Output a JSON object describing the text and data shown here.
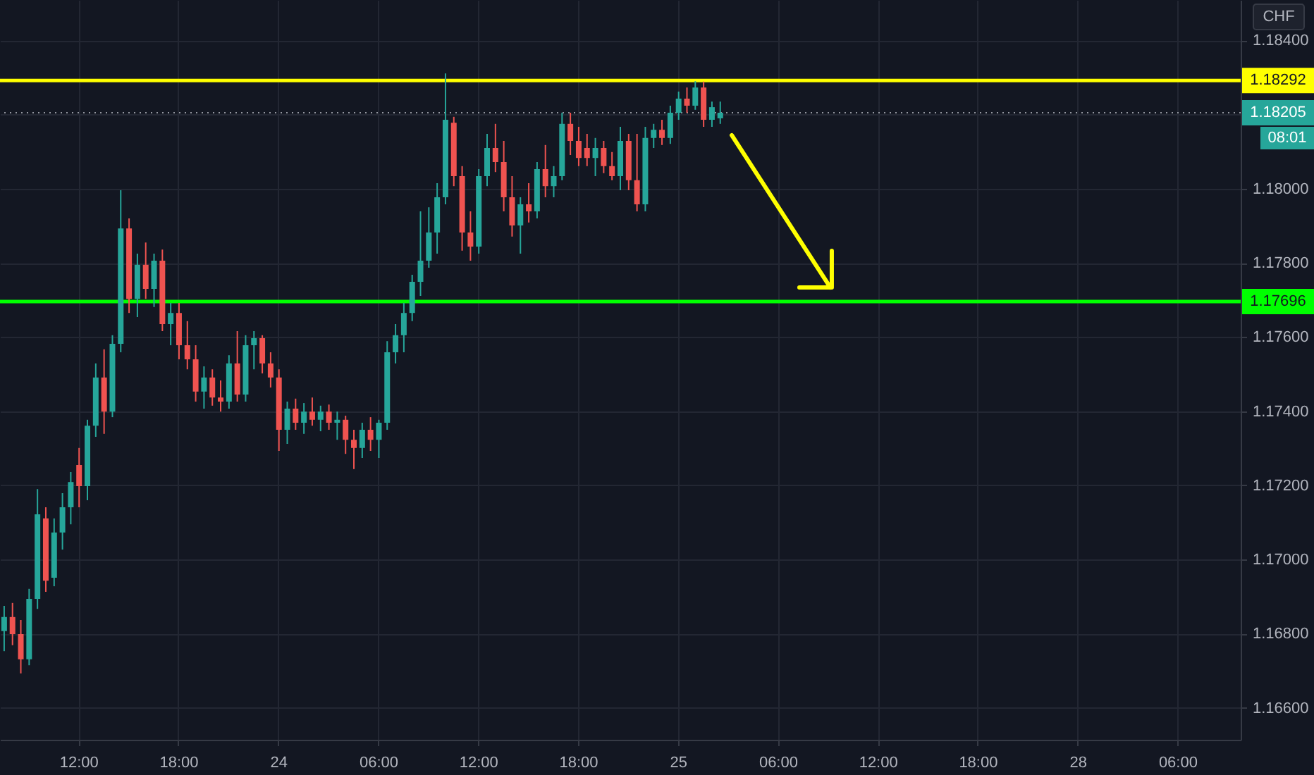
{
  "chart_data": {
    "type": "candlestick",
    "categories": [
      null,
      null,
      null,
      null,
      null,
      null,
      null,
      null,
      null,
      "12:00",
      null,
      null,
      null,
      null,
      null,
      null,
      null,
      null,
      null,
      null,
      null,
      "18:00",
      null,
      null,
      null,
      null,
      null,
      null,
      null,
      null,
      null,
      null,
      null,
      "24",
      null,
      null,
      null,
      null,
      null,
      null,
      null,
      null,
      null,
      null,
      null,
      "06:00",
      null,
      null,
      null,
      null,
      null,
      null,
      null,
      null,
      null,
      null,
      null,
      "12:00",
      null,
      null,
      null,
      null,
      null,
      null,
      null,
      null,
      null,
      null,
      null,
      "18:00",
      null,
      null,
      null,
      null,
      null,
      null,
      null,
      null,
      null,
      null,
      null,
      "25",
      null,
      null,
      null,
      null,
      null,
      null,
      null,
      null,
      null,
      null,
      null,
      "06:00",
      null,
      null,
      null,
      null,
      null,
      null,
      null,
      null,
      null,
      null,
      null,
      "12:00",
      null,
      null,
      null,
      null,
      null,
      null,
      null,
      null,
      null,
      null,
      null,
      "18:00",
      null,
      null,
      null,
      null,
      null,
      null,
      null,
      null,
      null,
      null,
      null,
      "28",
      null,
      null,
      null,
      null,
      null,
      null,
      null,
      null,
      null,
      null,
      null,
      "06:00",
      null,
      null,
      null,
      null,
      null,
      null,
      null
    ],
    "ohlc": [
      [
        1.16807,
        1.16875,
        1.16753,
        1.16845
      ],
      [
        1.16845,
        1.16883,
        1.16769,
        1.16799
      ],
      [
        1.16799,
        1.16837,
        1.16693,
        1.16731
      ],
      [
        1.16731,
        1.16921,
        1.16715,
        1.16894
      ],
      [
        1.16894,
        1.1719,
        1.16867,
        1.17122
      ],
      [
        1.17111,
        1.17141,
        1.16913,
        1.16943
      ],
      [
        1.16951,
        1.17111,
        1.16928,
        1.17073
      ],
      [
        1.17073,
        1.17179,
        1.17027,
        1.17141
      ],
      [
        1.17141,
        1.17236,
        1.17095,
        1.17209
      ],
      [
        1.17255,
        1.17301,
        1.17141,
        1.17198
      ],
      [
        1.17198,
        1.17377,
        1.1716,
        1.17361
      ],
      [
        1.17361,
        1.17529,
        1.17331,
        1.17491
      ],
      [
        1.17491,
        1.17567,
        1.17339,
        1.17399
      ],
      [
        1.17399,
        1.17605,
        1.17384,
        1.17582
      ],
      [
        1.17582,
        1.17996,
        1.17559,
        1.17893
      ],
      [
        1.17893,
        1.1792,
        1.17665,
        1.17703
      ],
      [
        1.17703,
        1.17825,
        1.17654,
        1.17795
      ],
      [
        1.17795,
        1.17855,
        1.17703,
        1.1773
      ],
      [
        1.1773,
        1.17825,
        1.17681,
        1.17806
      ],
      [
        1.17806,
        1.17836,
        1.17616,
        1.17635
      ],
      [
        1.17635,
        1.17692,
        1.17578,
        1.17665
      ],
      [
        1.17665,
        1.17692,
        1.1754,
        1.17578
      ],
      [
        1.17578,
        1.17643,
        1.17513,
        1.1754
      ],
      [
        1.1754,
        1.17578,
        1.17426,
        1.17453
      ],
      [
        1.17453,
        1.17521,
        1.17407,
        1.17491
      ],
      [
        1.17491,
        1.17513,
        1.17415,
        1.17437
      ],
      [
        1.17437,
        1.17483,
        1.17399,
        1.17426
      ],
      [
        1.17426,
        1.17551,
        1.17407,
        1.17529
      ],
      [
        1.17529,
        1.17616,
        1.17426,
        1.17445
      ],
      [
        1.17445,
        1.17605,
        1.17426,
        1.17578
      ],
      [
        1.17578,
        1.17616,
        1.17513,
        1.17597
      ],
      [
        1.17597,
        1.17605,
        1.17502,
        1.17529
      ],
      [
        1.17529,
        1.17559,
        1.17464,
        1.17491
      ],
      [
        1.17491,
        1.17513,
        1.17293,
        1.1735
      ],
      [
        1.1735,
        1.17426,
        1.17312,
        1.17407
      ],
      [
        1.17407,
        1.17434,
        1.1735,
        1.17369
      ],
      [
        1.17369,
        1.17422,
        1.17339,
        1.17399
      ],
      [
        1.17399,
        1.17437,
        1.17361,
        1.17377
      ],
      [
        1.17377,
        1.17415,
        1.17346,
        1.17399
      ],
      [
        1.17399,
        1.17418,
        1.1735,
        1.17369
      ],
      [
        1.17369,
        1.17399,
        1.17323,
        1.17377
      ],
      [
        1.17377,
        1.17388,
        1.17285,
        1.17323
      ],
      [
        1.17323,
        1.1735,
        1.17244,
        1.17301
      ],
      [
        1.17301,
        1.17369,
        1.17274,
        1.1735
      ],
      [
        1.1735,
        1.17384,
        1.17293,
        1.17323
      ],
      [
        1.17323,
        1.17377,
        1.17274,
        1.17369
      ],
      [
        1.17369,
        1.17589,
        1.1735,
        1.17559
      ],
      [
        1.17559,
        1.17635,
        1.17529,
        1.17605
      ],
      [
        1.17605,
        1.17692,
        1.17559,
        1.17665
      ],
      [
        1.17665,
        1.17768,
        1.17643,
        1.17749
      ],
      [
        1.17749,
        1.17939,
        1.17711,
        1.17806
      ],
      [
        1.17806,
        1.1795,
        1.17787,
        1.17882
      ],
      [
        1.17882,
        1.18015,
        1.17825,
        1.17977
      ],
      [
        1.17977,
        1.18311,
        1.17958,
        1.18186
      ],
      [
        1.18178,
        1.18194,
        1.18007,
        1.18034
      ],
      [
        1.18034,
        1.18061,
        1.17833,
        1.17882
      ],
      [
        1.17882,
        1.17939,
        1.17806,
        1.17844
      ],
      [
        1.17844,
        1.18053,
        1.17825,
        1.18034
      ],
      [
        1.18034,
        1.18148,
        1.18007,
        1.1811
      ],
      [
        1.1811,
        1.18175,
        1.18045,
        1.18072
      ],
      [
        1.18072,
        1.18129,
        1.17939,
        1.17977
      ],
      [
        1.17977,
        1.18034,
        1.17871,
        1.17901
      ],
      [
        1.17901,
        1.17977,
        1.17825,
        1.17958
      ],
      [
        1.17958,
        1.18015,
        1.17909,
        1.17939
      ],
      [
        1.17939,
        1.18072,
        1.1792,
        1.18053
      ],
      [
        1.18053,
        1.18118,
        1.17977,
        1.18007
      ],
      [
        1.18007,
        1.18061,
        1.17977,
        1.18034
      ],
      [
        1.18034,
        1.18205,
        1.18023,
        1.18175
      ],
      [
        1.18175,
        1.18205,
        1.18091,
        1.18129
      ],
      [
        1.18129,
        1.18167,
        1.18061,
        1.18083
      ],
      [
        1.1811,
        1.18148,
        1.18061,
        1.18083
      ],
      [
        1.18083,
        1.18137,
        1.18034,
        1.1811
      ],
      [
        1.1811,
        1.18129,
        1.18042,
        1.18061
      ],
      [
        1.18061,
        1.18099,
        1.18023,
        1.18034
      ],
      [
        1.18034,
        1.18167,
        1.17996,
        1.18129
      ],
      [
        1.18129,
        1.18148,
        1.17996,
        1.18023
      ],
      [
        1.18023,
        1.18148,
        1.17939,
        1.17958
      ],
      [
        1.17958,
        1.18167,
        1.17939,
        1.18137
      ],
      [
        1.18137,
        1.18175,
        1.1811,
        1.18159
      ],
      [
        1.18159,
        1.18186,
        1.18118,
        1.18137
      ],
      [
        1.18137,
        1.18224,
        1.18121,
        1.18205
      ],
      [
        1.18205,
        1.18262,
        1.18186,
        1.18243
      ],
      [
        1.18243,
        1.18273,
        1.18205,
        1.18224
      ],
      [
        1.18224,
        1.1829,
        1.18213,
        1.18273
      ],
      [
        1.18273,
        1.18289,
        1.18167,
        1.18186
      ],
      [
        1.18186,
        1.18235,
        1.18167,
        1.1822
      ],
      [
        1.1819,
        1.18235,
        1.18175,
        1.18205
      ],
      null,
      null,
      null,
      null,
      null,
      null,
      null,
      null,
      null,
      null,
      null,
      null,
      null,
      null,
      null,
      null,
      null,
      null,
      null,
      null,
      null,
      null,
      null,
      null,
      null,
      null,
      null,
      null,
      null,
      null,
      null,
      null,
      null,
      null,
      null,
      null,
      null,
      null,
      null,
      null,
      null,
      null,
      null,
      null,
      null,
      null,
      null,
      null,
      null,
      null,
      null,
      null,
      null,
      null,
      null,
      null,
      null,
      null,
      null,
      null,
      null,
      null
    ],
    "colors": [
      "#26a69a",
      "#ef5350",
      "#ef5350",
      "#26a69a",
      "#26a69a",
      "#ef5350",
      "#26a69a",
      "#26a69a",
      "#26a69a",
      "#ef5350",
      "#26a69a",
      "#26a69a",
      "#ef5350",
      "#26a69a",
      "#26a69a",
      "#ef5350",
      "#26a69a",
      "#ef5350",
      "#26a69a",
      "#ef5350",
      "#26a69a",
      "#ef5350",
      "#ef5350",
      "#ef5350",
      "#26a69a",
      "#ef5350",
      "#ef5350",
      "#26a69a",
      "#ef5350",
      "#26a69a",
      "#26a69a",
      "#ef5350",
      "#ef5350",
      "#ef5350",
      "#26a69a",
      "#ef5350",
      "#26a69a",
      "#ef5350",
      "#26a69a",
      "#ef5350",
      "#26a69a",
      "#ef5350",
      "#ef5350",
      "#26a69a",
      "#ef5350",
      "#26a69a",
      "#26a69a",
      "#26a69a",
      "#26a69a",
      "#26a69a",
      "#26a69a",
      "#26a69a",
      "#26a69a",
      "#26a69a",
      "#ef5350",
      "#ef5350",
      "#ef5350",
      "#26a69a",
      "#26a69a",
      "#ef5350",
      "#ef5350",
      "#ef5350",
      "#26a69a",
      "#ef5350",
      "#26a69a",
      "#ef5350",
      "#26a69a",
      "#26a69a",
      "#ef5350",
      "#ef5350",
      "#ef5350",
      "#26a69a",
      "#ef5350",
      "#ef5350",
      "#26a69a",
      "#ef5350",
      "#ef5350",
      "#26a69a",
      "#26a69a",
      "#ef5350",
      "#26a69a",
      "#26a69a",
      "#ef5350",
      "#26a69a",
      "#ef5350",
      "#26a69a",
      "#26a69a",
      null,
      null,
      null,
      null,
      null,
      null,
      null,
      null,
      null,
      null,
      null,
      null,
      null,
      null,
      null,
      null,
      null,
      null,
      null,
      null,
      null,
      null,
      null,
      null,
      null,
      null,
      null,
      null,
      null,
      null,
      null,
      null,
      null,
      null,
      null,
      null,
      null,
      null,
      null,
      null,
      null,
      null,
      null,
      null,
      null,
      null,
      null,
      null,
      null,
      null,
      null,
      null,
      null,
      null,
      null,
      null,
      null,
      null,
      null,
      null,
      null,
      null
    ],
    "ylim": [
      1.16514,
      1.18509
    ],
    "yticks": [
      {
        "value": 1.166,
        "label": "1.16600"
      },
      {
        "value": 1.168,
        "label": "1.16800"
      },
      {
        "value": 1.17,
        "label": "1.17000"
      },
      {
        "value": 1.172,
        "label": "1.17200"
      },
      {
        "value": 1.174,
        "label": "1.17400"
      },
      {
        "value": 1.176,
        "label": "1.17600"
      },
      {
        "value": 1.178,
        "label": "1.17800"
      },
      {
        "value": 1.18,
        "label": "1.18000"
      },
      {
        "value": 1.182,
        "label": null
      },
      {
        "value": 1.184,
        "label": "1.18400"
      }
    ],
    "ref_lines": [
      {
        "axis": "y",
        "value": 1.18292,
        "label": "1.18292",
        "color": "#ffff00",
        "line_style": "solid"
      },
      {
        "axis": "y",
        "value": 1.18205,
        "label": "1.18205",
        "color": "#9598a1",
        "line_style": "dotted"
      },
      {
        "axis": "y",
        "value": 1.17696,
        "label": "1.17696",
        "color": "#00ff00",
        "line_style": "solid"
      }
    ],
    "annotations": [
      "CHF",
      "08:01"
    ],
    "grid": true
  }
}
